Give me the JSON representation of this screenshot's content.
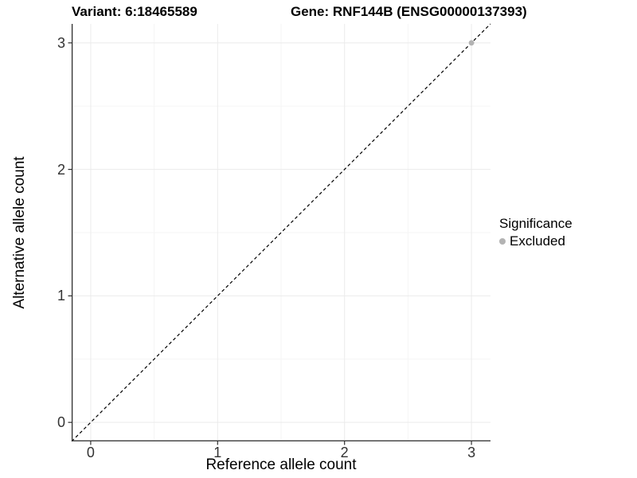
{
  "chart_data": {
    "type": "scatter",
    "titles": {
      "left": "Variant: 6:18465589",
      "right": "Gene: RNF144B (ENSG00000137393)"
    },
    "xlabel": "Reference allele count",
    "ylabel": "Alternative allele count",
    "xlim": [
      -0.15,
      3.15
    ],
    "ylim": [
      -0.15,
      3.15
    ],
    "x_ticks": [
      0,
      1,
      2,
      3
    ],
    "y_ticks": [
      0,
      1,
      2,
      3
    ],
    "x_minor_ticks": [
      0.5,
      1.5,
      2.5
    ],
    "y_minor_ticks": [
      0.5,
      1.5,
      2.5
    ],
    "grid": "major+minor",
    "reference_line": {
      "type": "identity y=x",
      "style": "dashed",
      "color": "#000000"
    },
    "series": [
      {
        "name": "Excluded",
        "color": "#b3b3b3",
        "points": [
          {
            "x": 3,
            "y": 3
          }
        ]
      }
    ],
    "legend": {
      "title": "Significance",
      "position": "right",
      "entries": [
        {
          "label": "Excluded",
          "color": "#b3b3b3"
        }
      ]
    },
    "colors": {
      "grid_major": "#ebebeb",
      "grid_minor": "#f5f5f5",
      "axis_line": "#2e2e2e",
      "background": "#ffffff"
    }
  }
}
